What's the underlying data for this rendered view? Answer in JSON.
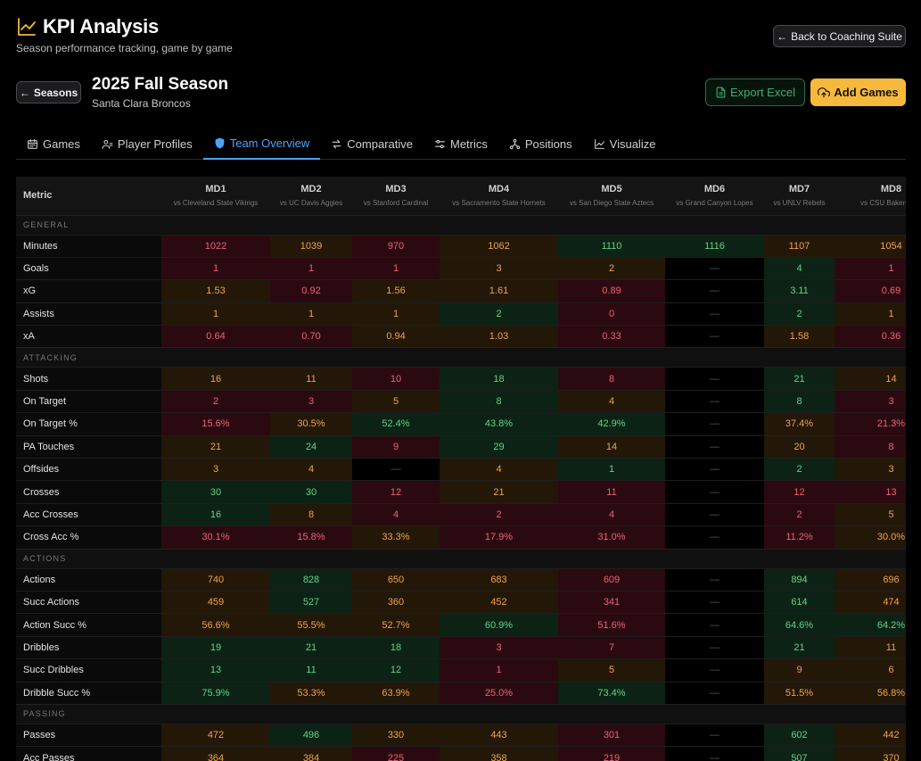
{
  "header": {
    "title": "KPI Analysis",
    "subtitle": "Season performance tracking, game by game",
    "back_label": "Back to Coaching Suite"
  },
  "season": {
    "back_label": "Seasons",
    "title": "2025 Fall Season",
    "team": "Santa Clara Broncos",
    "export_label": "Export Excel",
    "add_label": "Add Games"
  },
  "tabs": [
    {
      "label": "Games",
      "icon": "calendar-icon"
    },
    {
      "label": "Player Profiles",
      "icon": "users-icon"
    },
    {
      "label": "Team Overview",
      "icon": "shield-icon",
      "active": true
    },
    {
      "label": "Comparative",
      "icon": "arrows-icon"
    },
    {
      "label": "Metrics",
      "icon": "sliders-icon"
    },
    {
      "label": "Positions",
      "icon": "network-icon"
    },
    {
      "label": "Visualize",
      "icon": "chart-icon"
    }
  ],
  "colors": {
    "good": "#5fd68a",
    "mid": "#f0a546",
    "bad": "#f0607a",
    "active_tab": "#4aa3ff",
    "add_button": "#f6b93b"
  },
  "table": {
    "metric_header": "Metric",
    "games": [
      {
        "md": "MD1",
        "opp": "vs Cleveland State Vikings"
      },
      {
        "md": "MD2",
        "opp": "vs UC Davis Aggies"
      },
      {
        "md": "MD3",
        "opp": "vs Stanford Cardinal"
      },
      {
        "md": "MD4",
        "opp": "vs Sacramento State Hornets"
      },
      {
        "md": "MD5",
        "opp": "vs San Diego State Aztecs"
      },
      {
        "md": "MD6",
        "opp": "vs Grand Canyon Lopes"
      },
      {
        "md": "MD7",
        "opp": "vs UNLV Rebels"
      },
      {
        "md": "MD8",
        "opp": "vs CSU Bakersfield"
      }
    ],
    "sections": [
      {
        "name": "GENERAL",
        "rows": [
          {
            "metric": "Minutes",
            "values": [
              "1022",
              "1039",
              "970",
              "1062",
              "1110",
              "1116",
              "1107",
              "1054"
            ],
            "ratings": [
              "r",
              "o",
              "r",
              "o",
              "g",
              "g",
              "o",
              "o"
            ]
          },
          {
            "metric": "Goals",
            "values": [
              "1",
              "1",
              "1",
              "3",
              "2",
              "—",
              "4",
              "1"
            ],
            "ratings": [
              "r",
              "r",
              "r",
              "o",
              "o",
              "n",
              "g",
              "r"
            ]
          },
          {
            "metric": "xG",
            "values": [
              "1.53",
              "0.92",
              "1.56",
              "1.61",
              "0.89",
              "—",
              "3.11",
              "0.69"
            ],
            "ratings": [
              "o",
              "r",
              "o",
              "o",
              "r",
              "n",
              "g",
              "r"
            ]
          },
          {
            "metric": "Assists",
            "values": [
              "1",
              "1",
              "1",
              "2",
              "0",
              "—",
              "2",
              "1"
            ],
            "ratings": [
              "o",
              "o",
              "o",
              "g",
              "r",
              "n",
              "g",
              "o"
            ]
          },
          {
            "metric": "xA",
            "values": [
              "0.64",
              "0.70",
              "0.94",
              "1.03",
              "0.33",
              "—",
              "1.58",
              "0.36"
            ],
            "ratings": [
              "r",
              "r",
              "o",
              "o",
              "r",
              "n",
              "o",
              "r"
            ]
          }
        ]
      },
      {
        "name": "ATTACKING",
        "rows": [
          {
            "metric": "Shots",
            "values": [
              "16",
              "11",
              "10",
              "18",
              "8",
              "—",
              "21",
              "14"
            ],
            "ratings": [
              "o",
              "o",
              "r",
              "g",
              "r",
              "n",
              "g",
              "o"
            ]
          },
          {
            "metric": "On Target",
            "values": [
              "2",
              "3",
              "5",
              "8",
              "4",
              "—",
              "8",
              "3"
            ],
            "ratings": [
              "r",
              "r",
              "o",
              "g",
              "o",
              "n",
              "g",
              "r"
            ]
          },
          {
            "metric": "On Target %",
            "values": [
              "15.6%",
              "30.5%",
              "52.4%",
              "43.8%",
              "42.9%",
              "—",
              "37.4%",
              "21.3%"
            ],
            "ratings": [
              "r",
              "o",
              "g",
              "g",
              "g",
              "n",
              "o",
              "r"
            ]
          },
          {
            "metric": "PA Touches",
            "values": [
              "21",
              "24",
              "9",
              "29",
              "14",
              "—",
              "20",
              "8"
            ],
            "ratings": [
              "o",
              "g",
              "r",
              "g",
              "o",
              "n",
              "o",
              "r"
            ]
          },
          {
            "metric": "Offsides",
            "values": [
              "3",
              "4",
              "—",
              "4",
              "1",
              "—",
              "2",
              "3"
            ],
            "ratings": [
              "o",
              "o",
              "n",
              "o",
              "g",
              "n",
              "g",
              "o"
            ]
          },
          {
            "metric": "Crosses",
            "values": [
              "30",
              "30",
              "12",
              "21",
              "11",
              "—",
              "12",
              "13"
            ],
            "ratings": [
              "g",
              "g",
              "r",
              "o",
              "r",
              "n",
              "r",
              "r"
            ]
          },
          {
            "metric": "Acc Crosses",
            "values": [
              "16",
              "8",
              "4",
              "2",
              "4",
              "—",
              "2",
              "5"
            ],
            "ratings": [
              "g",
              "o",
              "r",
              "r",
              "r",
              "n",
              "r",
              "o"
            ]
          },
          {
            "metric": "Cross Acc %",
            "values": [
              "30.1%",
              "15.8%",
              "33.3%",
              "17.9%",
              "31.0%",
              "—",
              "11.2%",
              "30.0%"
            ],
            "ratings": [
              "r",
              "r",
              "o",
              "r",
              "r",
              "n",
              "r",
              "o"
            ]
          }
        ]
      },
      {
        "name": "ACTIONS",
        "rows": [
          {
            "metric": "Actions",
            "values": [
              "740",
              "828",
              "650",
              "683",
              "609",
              "—",
              "894",
              "696"
            ],
            "ratings": [
              "o",
              "g",
              "o",
              "o",
              "r",
              "n",
              "g",
              "o"
            ]
          },
          {
            "metric": "Succ Actions",
            "values": [
              "459",
              "527",
              "360",
              "452",
              "341",
              "—",
              "614",
              "474"
            ],
            "ratings": [
              "o",
              "g",
              "o",
              "o",
              "r",
              "n",
              "g",
              "o"
            ]
          },
          {
            "metric": "Action Succ %",
            "values": [
              "56.6%",
              "55.5%",
              "52.7%",
              "60.9%",
              "51.6%",
              "—",
              "64.6%",
              "64.2%"
            ],
            "ratings": [
              "o",
              "o",
              "o",
              "g",
              "r",
              "n",
              "g",
              "g"
            ]
          },
          {
            "metric": "Dribbles",
            "values": [
              "19",
              "21",
              "18",
              "3",
              "7",
              "—",
              "21",
              "11"
            ],
            "ratings": [
              "g",
              "g",
              "g",
              "r",
              "r",
              "n",
              "g",
              "o"
            ]
          },
          {
            "metric": "Succ Dribbles",
            "values": [
              "13",
              "11",
              "12",
              "1",
              "5",
              "—",
              "9",
              "6"
            ],
            "ratings": [
              "g",
              "g",
              "g",
              "r",
              "o",
              "n",
              "o",
              "o"
            ]
          },
          {
            "metric": "Dribble Succ %",
            "values": [
              "75.9%",
              "53.3%",
              "63.9%",
              "25.0%",
              "73.4%",
              "—",
              "51.5%",
              "56.8%"
            ],
            "ratings": [
              "g",
              "o",
              "o",
              "r",
              "g",
              "n",
              "o",
              "o"
            ]
          }
        ]
      },
      {
        "name": "PASSING",
        "rows": [
          {
            "metric": "Passes",
            "values": [
              "472",
              "496",
              "330",
              "443",
              "301",
              "—",
              "602",
              "442"
            ],
            "ratings": [
              "o",
              "g",
              "o",
              "o",
              "r",
              "n",
              "g",
              "o"
            ]
          },
          {
            "metric": "Acc Passes",
            "values": [
              "364",
              "384",
              "225",
              "358",
              "219",
              "—",
              "507",
              "370"
            ],
            "ratings": [
              "o",
              "o",
              "r",
              "o",
              "r",
              "n",
              "g",
              "o"
            ]
          }
        ]
      }
    ]
  }
}
